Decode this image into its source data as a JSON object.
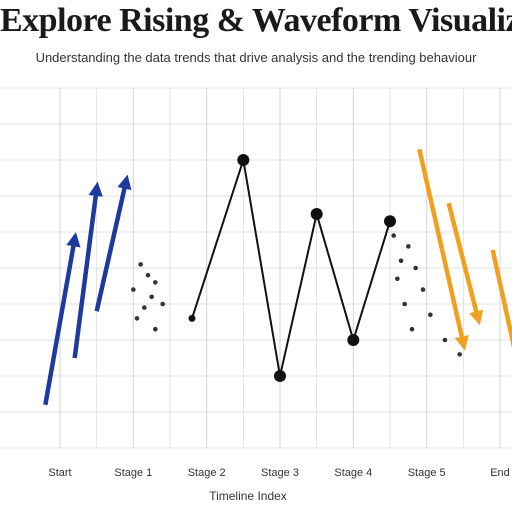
{
  "colors": {
    "background": "#ffffff",
    "grid": "#d9d9d9",
    "line": "#111111",
    "up_arrows": "#1f3a9e",
    "down_arrows": "#f0a020",
    "scatter": "#333333",
    "text": "#1a1a1a"
  },
  "chart_data": {
    "type": "line",
    "title": "Explore Rising & Waveform Visualization",
    "subtitle": "Understanding the data trends that drive analysis and the trending behaviour",
    "xlabel": "Timeline Index",
    "ylabel": "",
    "categories": [
      "Start",
      "Stage 1",
      "Stage 2",
      "Stage 3",
      "Stage 4",
      "Stage 5",
      "End"
    ],
    "x": [
      0,
      1,
      2,
      3,
      4,
      5,
      6
    ],
    "xlim": [
      0,
      6
    ],
    "ylim": [
      0,
      10
    ],
    "grid": true,
    "legend": "none",
    "series": [
      {
        "kind": "line",
        "points": [
          [
            1.8,
            3.6
          ],
          [
            2.5,
            8.0
          ],
          [
            3.0,
            2.0
          ],
          [
            3.5,
            6.5
          ],
          [
            4.0,
            3.0
          ],
          [
            4.5,
            6.3
          ]
        ]
      },
      {
        "kind": "arrows-up",
        "segments": [
          [
            [
              -0.2,
              1.2
            ],
            [
              0.2,
              5.8
            ]
          ],
          [
            [
              0.2,
              2.5
            ],
            [
              0.5,
              7.2
            ]
          ],
          [
            [
              0.5,
              3.8
            ],
            [
              0.9,
              7.4
            ]
          ]
        ]
      },
      {
        "kind": "arrows-down",
        "segments": [
          [
            [
              4.9,
              8.3
            ],
            [
              5.5,
              2.9
            ]
          ],
          [
            [
              5.3,
              6.8
            ],
            [
              5.7,
              3.6
            ]
          ],
          [
            [
              5.9,
              5.5
            ],
            [
              6.3,
              1.8
            ]
          ]
        ]
      },
      {
        "kind": "scatter",
        "points": [
          [
            1.1,
            5.1
          ],
          [
            1.2,
            4.8
          ],
          [
            1.3,
            4.6
          ],
          [
            1.0,
            4.4
          ],
          [
            1.25,
            4.2
          ],
          [
            1.15,
            3.9
          ],
          [
            1.4,
            4.0
          ],
          [
            1.05,
            3.6
          ],
          [
            1.3,
            3.3
          ],
          [
            4.55,
            5.9
          ],
          [
            4.75,
            5.6
          ],
          [
            4.65,
            5.2
          ],
          [
            4.85,
            5.0
          ],
          [
            4.6,
            4.7
          ],
          [
            4.95,
            4.4
          ],
          [
            4.7,
            4.0
          ],
          [
            5.05,
            3.7
          ],
          [
            4.8,
            3.3
          ],
          [
            5.25,
            3.0
          ],
          [
            5.45,
            2.6
          ]
        ]
      }
    ]
  }
}
